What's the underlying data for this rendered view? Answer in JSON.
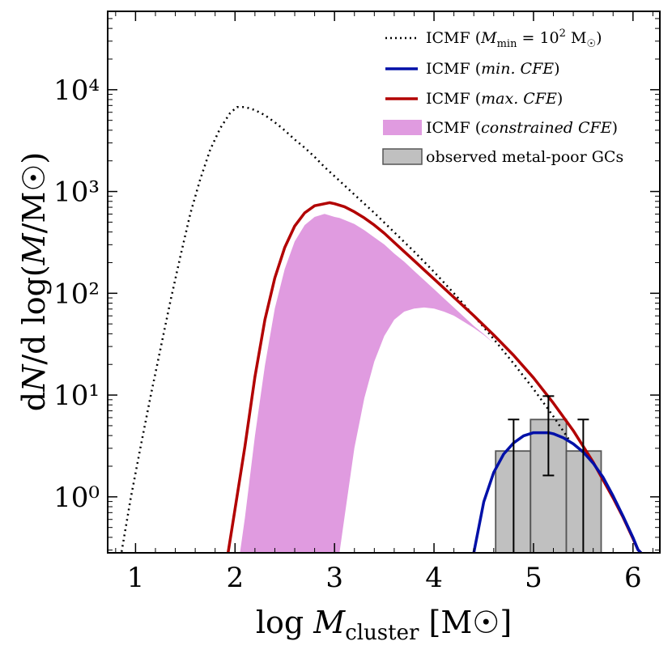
{
  "chart_data": {
    "type": "line",
    "title": "",
    "xlabel": "log M_cluster [M☉]",
    "ylabel": "dN/d log(M/M☉)",
    "xlim": [
      0.72,
      6.27
    ],
    "ylim_log10": [
      -0.55,
      4.77
    ],
    "y_scale": "log",
    "xticks": [
      1,
      2,
      3,
      4,
      5,
      6
    ],
    "xtick_labels": [
      "1",
      "2",
      "3",
      "4",
      "5",
      "6"
    ],
    "yticks_log10": [
      0,
      1,
      2,
      3,
      4
    ],
    "ytick_labels": [
      "10⁰",
      "10¹",
      "10²",
      "10³",
      "10⁴"
    ],
    "legend_position": "upper-right",
    "legend": [
      {
        "label": "ICMF (M_min = 10² M☉)",
        "style": "dotted",
        "color": "#000000"
      },
      {
        "label": "ICMF (min. CFE)",
        "style": "solid",
        "color": "#0010a8"
      },
      {
        "label": "ICMF (max. CFE)",
        "style": "solid",
        "color": "#b20000"
      },
      {
        "label": "ICMF (constrained CFE)",
        "style": "fill",
        "color": "#e09be0"
      },
      {
        "label": "observed metal-poor GCs",
        "style": "bar",
        "color": "#c0c0c0"
      }
    ],
    "series": [
      {
        "name": "ICMF (M_min = 10² M☉)",
        "style": "dotted",
        "color": "#000000",
        "x": [
          0.86,
          0.95,
          1.05,
          1.15,
          1.25,
          1.35,
          1.45,
          1.55,
          1.65,
          1.75,
          1.85,
          1.95,
          2.02,
          2.1,
          2.2,
          2.3,
          2.4,
          2.5,
          2.6,
          2.7,
          2.8,
          2.9,
          3.0,
          3.2,
          3.4,
          3.6,
          3.8,
          4.0,
          4.2,
          4.4,
          4.6,
          4.8,
          5.0,
          5.2,
          5.4
        ],
        "y_log10": [
          -0.54,
          -0.02,
          0.49,
          0.98,
          1.45,
          1.92,
          2.36,
          2.78,
          3.12,
          3.41,
          3.62,
          3.77,
          3.83,
          3.83,
          3.8,
          3.75,
          3.68,
          3.6,
          3.51,
          3.43,
          3.34,
          3.24,
          3.15,
          2.97,
          2.79,
          2.6,
          2.41,
          2.21,
          2.0,
          1.78,
          1.55,
          1.31,
          1.06,
          0.79,
          0.5
        ]
      },
      {
        "name": "ICMF (max. CFE)",
        "style": "solid",
        "color": "#b20000",
        "x": [
          1.93,
          2.0,
          2.1,
          2.2,
          2.3,
          2.4,
          2.5,
          2.6,
          2.7,
          2.8,
          2.9,
          2.95,
          3.0,
          3.1,
          3.2,
          3.3,
          3.4,
          3.5,
          3.6,
          3.7,
          3.8,
          3.9,
          4.0,
          4.2,
          4.4,
          4.6,
          4.8,
          5.0,
          5.2,
          5.4,
          5.6,
          5.8,
          5.9,
          6.0,
          6.05,
          6.08
        ],
        "y_log10": [
          -0.55,
          -0.12,
          0.5,
          1.18,
          1.74,
          2.15,
          2.45,
          2.66,
          2.79,
          2.86,
          2.88,
          2.89,
          2.88,
          2.85,
          2.8,
          2.74,
          2.67,
          2.59,
          2.5,
          2.41,
          2.32,
          2.23,
          2.14,
          1.96,
          1.78,
          1.59,
          1.39,
          1.17,
          0.92,
          0.65,
          0.34,
          -0.01,
          -0.2,
          -0.41,
          -0.52,
          -0.55
        ]
      },
      {
        "name": "ICMF (min. CFE)",
        "style": "solid",
        "color": "#0010a8",
        "x": [
          4.4,
          4.5,
          4.6,
          4.7,
          4.8,
          4.9,
          5.0,
          5.05,
          5.1,
          5.15,
          5.2,
          5.3,
          5.4,
          5.5,
          5.6,
          5.7,
          5.8,
          5.9,
          6.0,
          6.05,
          6.08
        ],
        "y_log10": [
          -0.55,
          -0.05,
          0.24,
          0.42,
          0.53,
          0.6,
          0.63,
          0.63,
          0.63,
          0.63,
          0.62,
          0.58,
          0.52,
          0.44,
          0.33,
          0.19,
          0.01,
          -0.19,
          -0.4,
          -0.52,
          -0.55
        ]
      }
    ],
    "band": {
      "name": "ICMF (constrained CFE)",
      "color": "#e09be0",
      "x": [
        2.05,
        2.1,
        2.2,
        2.3,
        2.4,
        2.5,
        2.6,
        2.7,
        2.8,
        2.9,
        3.0,
        3.05,
        3.1,
        3.2,
        3.3,
        3.4,
        3.5,
        3.6,
        3.7,
        3.8,
        3.9,
        4.0,
        4.1,
        4.2,
        4.3,
        4.4,
        4.5,
        4.6,
        4.65,
        4.7
      ],
      "upper_log10": [
        -0.55,
        -0.2,
        0.6,
        1.29,
        1.85,
        2.24,
        2.51,
        2.67,
        2.75,
        2.78,
        2.75,
        2.74,
        2.72,
        2.68,
        2.62,
        2.55,
        2.48,
        2.39,
        2.31,
        2.22,
        2.13,
        2.04,
        1.95,
        1.86,
        1.77,
        1.68,
        1.6,
        1.51,
        1.46,
        1.42
      ],
      "lower_log10": [
        null,
        null,
        null,
        null,
        null,
        null,
        null,
        null,
        null,
        null,
        null,
        -0.55,
        -0.2,
        0.48,
        0.97,
        1.33,
        1.58,
        1.74,
        1.82,
        1.85,
        1.86,
        1.85,
        1.82,
        1.78,
        1.72,
        1.66,
        1.59,
        1.51,
        1.46,
        1.42
      ]
    },
    "bars": {
      "name": "observed metal-poor GCs",
      "color": "#c0c0c0",
      "edges": [
        4.62,
        4.97,
        5.33,
        5.68
      ],
      "values_log10": [
        0.45,
        0.76,
        0.45
      ],
      "error_x": [
        4.8,
        5.15,
        5.5
      ],
      "error_low_log10": [
        -0.55,
        0.21,
        -0.55
      ],
      "error_high_log10": [
        0.76,
        0.99,
        0.76
      ]
    }
  }
}
